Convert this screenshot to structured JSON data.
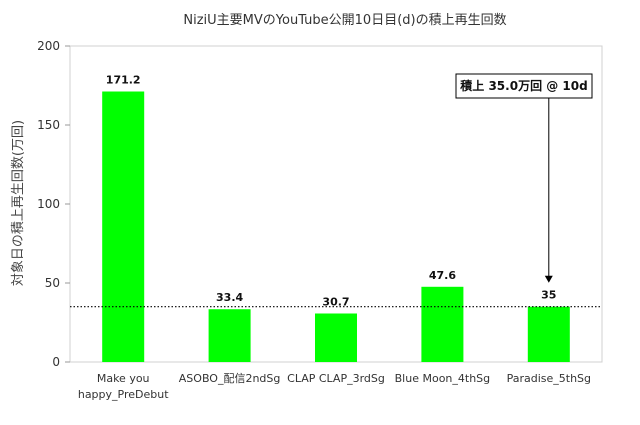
{
  "chart_data": {
    "type": "bar",
    "title": "NiziU主要MVのYouTube公開10日目(d)の積上再生回数",
    "xlabel": "",
    "ylabel": "対象日の積上再生回数(万回)",
    "categories": [
      [
        "Make you",
        "happy_PreDebut"
      ],
      [
        "ASOBO_配信2ndSg"
      ],
      [
        "CLAP CLAP_3rdSg"
      ],
      [
        "Blue Moon_4thSg"
      ],
      [
        "Paradise_5thSg"
      ]
    ],
    "values": [
      171.2,
      33.4,
      30.7,
      47.6,
      35
    ],
    "value_labels": [
      "171.2",
      "33.4",
      "30.7",
      "47.6",
      "35"
    ],
    "ylim": [
      0,
      200
    ],
    "yticks": [
      "0",
      "50",
      "100",
      "150",
      "200"
    ],
    "bar_color": "#00ff00",
    "reference_line": {
      "value": 35.0,
      "style": "dotted"
    },
    "annotation": {
      "text": "積上 35.0万回 @ 10d",
      "target_index": 4
    },
    "grid": false
  }
}
